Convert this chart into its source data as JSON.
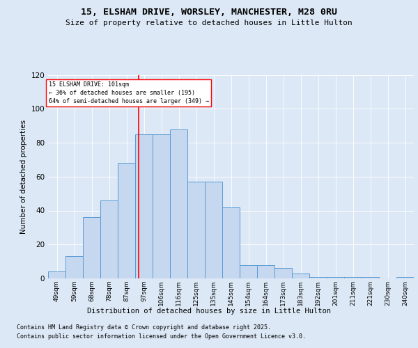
{
  "title": "15, ELSHAM DRIVE, WORSLEY, MANCHESTER, M28 0RU",
  "subtitle": "Size of property relative to detached houses in Little Hulton",
  "xlabel": "Distribution of detached houses by size in Little Hulton",
  "ylabel": "Number of detached properties",
  "bin_labels": [
    "49sqm",
    "59sqm",
    "68sqm",
    "78sqm",
    "87sqm",
    "97sqm",
    "106sqm",
    "116sqm",
    "125sqm",
    "135sqm",
    "145sqm",
    "154sqm",
    "164sqm",
    "173sqm",
    "183sqm",
    "192sqm",
    "201sqm",
    "211sqm",
    "221sqm",
    "230sqm",
    "240sqm"
  ],
  "bin_starts": [
    0,
    1,
    2,
    3,
    4,
    5,
    6,
    7,
    8,
    9,
    10,
    11,
    12,
    13,
    14,
    15,
    16,
    17,
    18,
    19,
    20
  ],
  "bar_values": [
    4,
    13,
    36,
    46,
    68,
    85,
    85,
    88,
    57,
    57,
    42,
    8,
    8,
    6,
    3,
    1,
    1,
    1,
    1,
    0,
    1
  ],
  "bar_color": "#c5d8ef",
  "bar_edge_color": "#5b9bd5",
  "ref_bin_idx": 5.2,
  "annotation_text": "15 ELSHAM DRIVE: 101sqm\n← 36% of detached houses are smaller (195)\n64% of semi-detached houses are larger (349) →",
  "ylim": [
    0,
    120
  ],
  "yticks": [
    0,
    20,
    40,
    60,
    80,
    100,
    120
  ],
  "bg_color": "#dce8f5",
  "footer1": "Contains HM Land Registry data © Crown copyright and database right 2025.",
  "footer2": "Contains public sector information licensed under the Open Government Licence v3.0."
}
